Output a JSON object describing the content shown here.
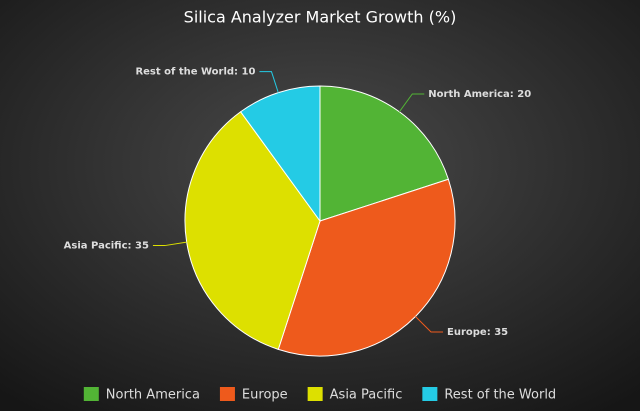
{
  "chart_data": {
    "type": "pie",
    "title": "Silica Analyzer Market Growth (%)",
    "categories": [
      "North America",
      "Europe",
      "Asia Pacific",
      "Rest of the World"
    ],
    "values": [
      20,
      35,
      35,
      10
    ],
    "value_labels": [
      "North America: 20",
      "Europe: 35",
      "Asia Pacific: 35",
      "Rest of the World: 10"
    ],
    "colors": [
      "#52b435",
      "#ee5a1c",
      "#dde000",
      "#24cbe5"
    ],
    "legend": "bottom"
  }
}
